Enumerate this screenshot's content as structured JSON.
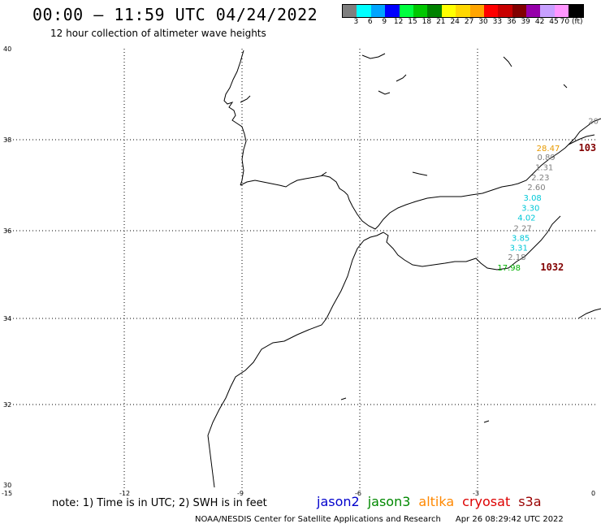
{
  "header": {
    "title": "00:00 – 11:59 UTC 04/24/2022",
    "subtitle": "12 hour collection of altimeter wave heights"
  },
  "colorbar": {
    "colors": [
      "#7f7f7f",
      "#00ffff",
      "#00a5ff",
      "#0000ff",
      "#00ff3f",
      "#00c800",
      "#008200",
      "#ffff00",
      "#ffd700",
      "#ffa500",
      "#ff0000",
      "#c80000",
      "#820000",
      "#9600aa",
      "#c8a0ff",
      "#ff96ff",
      "#000000"
    ],
    "labels": [
      "3",
      "6",
      "9",
      "12",
      "15",
      "18",
      "21",
      "24",
      "27",
      "30",
      "33",
      "36",
      "39",
      "42",
      "45",
      "70 (ft)"
    ]
  },
  "axes": {
    "lat_labels": [
      "40",
      "38",
      "36",
      "34",
      "32",
      "30"
    ],
    "lon_labels": [
      "-15",
      "-12",
      "-9",
      "-6",
      "-3",
      "0"
    ]
  },
  "observations": [
    {
      "lon": -0.05,
      "lat": 38.35,
      "text": "20",
      "color": "#7f7f7f"
    },
    {
      "lon": -1.2,
      "lat": 37.75,
      "text": "28.47",
      "color": "#e89a00"
    },
    {
      "lon": -0.2,
      "lat": 37.75,
      "text": "103",
      "color": "#820000"
    },
    {
      "lon": -1.25,
      "lat": 37.55,
      "text": "0.89",
      "color": "#7f7f7f"
    },
    {
      "lon": -1.3,
      "lat": 37.33,
      "text": "1.31",
      "color": "#7f7f7f"
    },
    {
      "lon": -1.4,
      "lat": 37.11,
      "text": "2.23",
      "color": "#7f7f7f"
    },
    {
      "lon": -1.5,
      "lat": 36.89,
      "text": "2.60",
      "color": "#7f7f7f"
    },
    {
      "lon": -1.6,
      "lat": 36.66,
      "text": "3.08",
      "color": "#00c8d8"
    },
    {
      "lon": -1.65,
      "lat": 36.44,
      "text": "3.30",
      "color": "#00c8d8"
    },
    {
      "lon": -1.75,
      "lat": 36.22,
      "text": "4.02",
      "color": "#00c8d8"
    },
    {
      "lon": -1.85,
      "lat": 35.99,
      "text": "2.27",
      "color": "#7f7f7f"
    },
    {
      "lon": -1.9,
      "lat": 35.77,
      "text": "3.85",
      "color": "#00c8d8"
    },
    {
      "lon": -1.95,
      "lat": 35.55,
      "text": "3.31",
      "color": "#00c8d8"
    },
    {
      "lon": -2.0,
      "lat": 35.33,
      "text": "2.18",
      "color": "#7f7f7f"
    },
    {
      "lon": -2.2,
      "lat": 35.09,
      "text": "17.98",
      "color": "#00b000"
    },
    {
      "lon": -1.1,
      "lat": 35.09,
      "text": "1032",
      "color": "#820000"
    }
  ],
  "note": "note:  1) Time is in UTC;  2) SWH is in feet",
  "legend": [
    {
      "name": "jason2",
      "color": "#0000cc"
    },
    {
      "name": "jason3",
      "color": "#008800"
    },
    {
      "name": "altika",
      "color": "#ff8800"
    },
    {
      "name": "cryosat",
      "color": "#dd0000"
    },
    {
      "name": "s3a",
      "color": "#990000"
    }
  ],
  "footer": {
    "credit": "NOAA/NESDIS Center for Satellite Applications and Research",
    "timestamp": "Apr 26 08:29:42 UTC 2022"
  }
}
